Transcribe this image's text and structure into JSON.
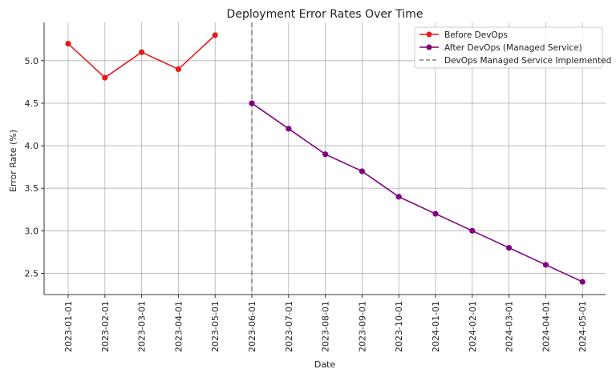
{
  "chart_data": {
    "type": "line",
    "title": "Deployment Error Rates Over Time",
    "xlabel": "Date",
    "ylabel": "Error Rate (%)",
    "ylim": [
      2.25,
      5.45
    ],
    "yticks": [
      "2.5",
      "3.0",
      "3.5",
      "4.0",
      "4.5",
      "5.0"
    ],
    "categories": [
      "2023-01-01",
      "2023-02-01",
      "2023-03-01",
      "2023-04-01",
      "2023-05-01",
      "2023-06-01",
      "2023-07-01",
      "2023-08-01",
      "2023-09-01",
      "2023-10-01",
      "2024-01-01",
      "2024-02-01",
      "2024-03-01",
      "2024-04-01",
      "2024-05-01"
    ],
    "grid": true,
    "legend_position": "top-right",
    "series": [
      {
        "name": "Before DevOps",
        "color": "#e8191c",
        "x": [
          "2023-01-01",
          "2023-02-01",
          "2023-03-01",
          "2023-04-01",
          "2023-05-01"
        ],
        "values": [
          5.2,
          4.8,
          5.1,
          4.9,
          5.3
        ]
      },
      {
        "name": "After DevOps (Managed Service)",
        "color": "#800080",
        "x": [
          "2023-06-01",
          "2023-07-01",
          "2023-08-01",
          "2023-09-01",
          "2023-10-01",
          "2024-01-01",
          "2024-02-01",
          "2024-03-01",
          "2024-04-01",
          "2024-05-01"
        ],
        "values": [
          4.5,
          4.2,
          3.9,
          3.7,
          3.4,
          3.2,
          3.0,
          2.8,
          2.6,
          2.4
        ]
      }
    ],
    "annotations": [
      {
        "type": "vertical-line",
        "name": "DevOps Managed Service Implemented",
        "x": "2023-06-01",
        "color": "#808080",
        "style": "dashed"
      }
    ]
  }
}
